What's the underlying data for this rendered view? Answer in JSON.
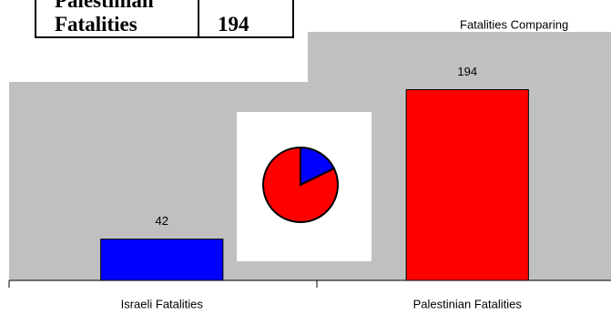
{
  "table": {
    "rows": [
      [
        "Palestinian Fatalities",
        "194"
      ]
    ]
  },
  "chart_data": {
    "type": "bar",
    "title": "Fatalities Comparing",
    "categories": [
      "Israeli Fatalities",
      "Palestinian Fatalities"
    ],
    "values": [
      42,
      194
    ],
    "colors": [
      "#0000ff",
      "#ff0000"
    ],
    "ylim": [
      0,
      200
    ],
    "inset": "pie"
  }
}
